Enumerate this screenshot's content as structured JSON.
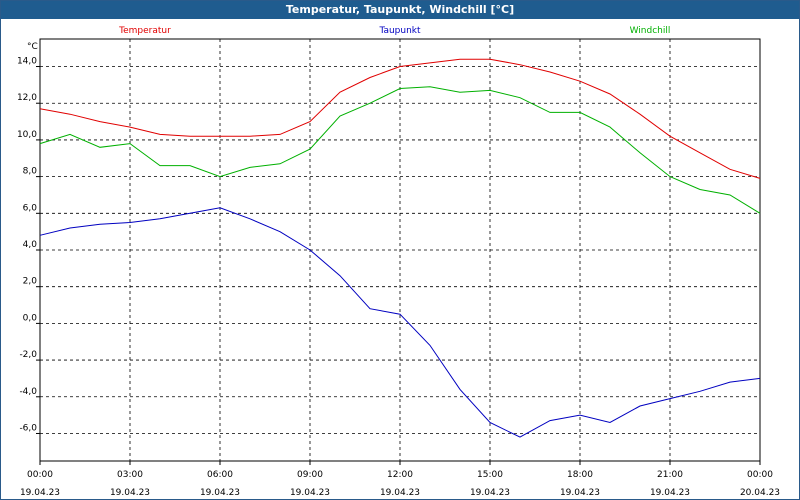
{
  "window": {
    "title": "Temperatur, Taupunkt, Windchill [°C]"
  },
  "chart_data": {
    "type": "line",
    "title": "Temperatur, Taupunkt, Windchill [°C]",
    "ylabel": "°C",
    "xlabel": "",
    "ylim": [
      -7.5,
      15.5
    ],
    "xlim": [
      0,
      24
    ],
    "grid": true,
    "legend_position": "top",
    "y_ticks": [
      "14,0",
      "12,0",
      "10,0",
      "8,0",
      "6,0",
      "4,0",
      "2,0",
      "0,0",
      "-2,0",
      "-4,0",
      "-6,0"
    ],
    "y_tick_values": [
      14,
      12,
      10,
      8,
      6,
      4,
      2,
      0,
      -2,
      -4,
      -6
    ],
    "x_ticks": [
      {
        "time": "00:00",
        "date": "19.04.23"
      },
      {
        "time": "03:00",
        "date": "19.04.23"
      },
      {
        "time": "06:00",
        "date": "19.04.23"
      },
      {
        "time": "09:00",
        "date": "19.04.23"
      },
      {
        "time": "12:00",
        "date": "19.04.23"
      },
      {
        "time": "15:00",
        "date": "19.04.23"
      },
      {
        "time": "18:00",
        "date": "19.04.23"
      },
      {
        "time": "21:00",
        "date": "19.04.23"
      },
      {
        "time": "00:00",
        "date": "20.04.23"
      }
    ],
    "x": [
      0,
      1,
      2,
      3,
      4,
      5,
      6,
      7,
      8,
      9,
      10,
      11,
      12,
      13,
      14,
      15,
      16,
      17,
      18,
      19,
      20,
      21,
      22,
      23,
      24
    ],
    "series": [
      {
        "name": "Temperatur",
        "color": "#e00000",
        "values": [
          11.7,
          11.4,
          11.0,
          10.7,
          10.3,
          10.2,
          10.2,
          10.2,
          10.3,
          11.0,
          12.6,
          13.4,
          14.0,
          14.2,
          14.4,
          14.4,
          14.1,
          13.7,
          13.2,
          12.5,
          11.4,
          10.2,
          9.3,
          8.4,
          7.9
        ]
      },
      {
        "name": "Taupunkt",
        "color": "#0000c0",
        "values": [
          4.8,
          5.2,
          5.4,
          5.5,
          5.7,
          6.0,
          6.3,
          5.7,
          5.0,
          4.0,
          2.6,
          0.8,
          0.5,
          -1.2,
          -3.6,
          -5.4,
          -6.2,
          -5.3,
          -5.0,
          -5.4,
          -4.5,
          -4.1,
          -3.7,
          -3.2,
          -3.0
        ]
      },
      {
        "name": "Windchill",
        "color": "#00b000",
        "values": [
          9.8,
          10.3,
          9.6,
          9.8,
          8.6,
          8.6,
          8.0,
          8.5,
          8.7,
          9.5,
          11.3,
          12.0,
          12.8,
          12.9,
          12.6,
          12.7,
          12.3,
          11.5,
          11.5,
          10.7,
          9.3,
          8.0,
          7.3,
          7.0,
          6.0
        ]
      }
    ]
  }
}
